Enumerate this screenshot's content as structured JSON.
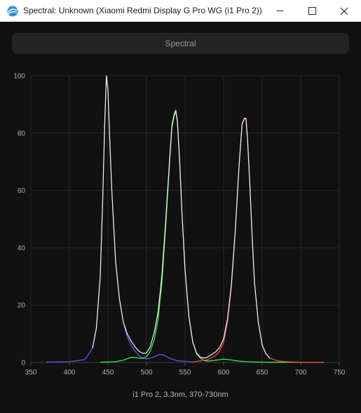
{
  "window": {
    "title": "Spectral: Unknown (Xiaomi Redmi Display G Pro WG (i1 Pro 2))",
    "icons": {
      "app": "spectral-app-icon",
      "minimize": "minimize-icon",
      "maximize": "maximize-icon",
      "close": "close-icon"
    }
  },
  "toolbar": {
    "mode_label": "Spectral"
  },
  "caption": "i1 Pro 2, 3.3nm, 370-730nm",
  "colors": {
    "blue": "#7a4dff",
    "green": "#3cff3c",
    "red": "#ff4a4a",
    "envelope": "#f2f2f2"
  },
  "chart_data": {
    "type": "line",
    "title": "",
    "xlabel": "",
    "ylabel": "",
    "xlim": [
      350,
      750
    ],
    "ylim": [
      0,
      100
    ],
    "xticks": [
      350,
      400,
      450,
      500,
      550,
      600,
      650,
      700,
      750
    ],
    "yticks": [
      0,
      20,
      40,
      60,
      80,
      100
    ],
    "grid": true,
    "legend": "none",
    "series": [
      {
        "color": "#7a4dff",
        "x": [
          370,
          400,
          420,
          430,
          435,
          440,
          443,
          446,
          448,
          450,
          452,
          455,
          460,
          465,
          470,
          475,
          480,
          485,
          490,
          495,
          500,
          505,
          510,
          515,
          520,
          525,
          530,
          540,
          560
        ],
        "y": [
          0.2,
          0.3,
          1,
          5,
          12,
          30,
          55,
          85,
          100,
          95,
          80,
          60,
          35,
          22,
          14,
          9,
          6,
          4,
          2.5,
          1.5,
          1.2,
          1.5,
          2,
          2.6,
          2.8,
          2.2,
          1.5,
          0.6,
          0.2
        ]
      },
      {
        "color": "#3cff3c",
        "x": [
          440,
          460,
          470,
          480,
          485,
          490,
          495,
          500,
          505,
          510,
          515,
          520,
          525,
          530,
          533,
          536,
          538,
          540,
          543,
          546,
          550,
          555,
          560,
          565,
          570,
          575,
          580,
          590,
          600,
          610,
          620,
          630,
          640,
          660,
          700,
          730
        ],
        "y": [
          0.1,
          0.3,
          0.8,
          1.8,
          1.8,
          1.5,
          1.5,
          2,
          4,
          8,
          15,
          28,
          48,
          70,
          82,
          86,
          87.5,
          84,
          70,
          52,
          32,
          16,
          7,
          3,
          1.5,
          0.7,
          0.5,
          0.8,
          1.2,
          0.9,
          0.5,
          0.3,
          0.2,
          0.1,
          0.1,
          0.1
        ]
      },
      {
        "color": "#ff4a4a",
        "x": [
          560,
          580,
          590,
          595,
          600,
          605,
          610,
          615,
          620,
          624,
          627,
          629,
          631,
          634,
          637,
          640,
          645,
          650,
          655,
          660,
          670,
          680,
          700,
          730
        ],
        "y": [
          0.2,
          1,
          2.5,
          4,
          7,
          14,
          26,
          45,
          68,
          83,
          85,
          85,
          78,
          62,
          44,
          28,
          14,
          6,
          3,
          1.5,
          0.6,
          0.3,
          0.1,
          0.1
        ]
      },
      {
        "color": "#f2f2f2",
        "x": [
          430,
          435,
          440,
          443,
          446,
          448,
          450,
          452,
          455,
          460,
          465,
          470,
          475,
          480,
          485,
          490,
          495,
          500,
          505,
          510,
          515,
          520,
          525,
          530,
          533,
          536,
          538,
          540,
          543,
          546,
          550,
          555,
          560,
          565,
          570,
          575,
          580,
          585,
          590,
          595,
          600,
          605,
          610,
          615,
          620,
          624,
          627,
          629,
          631,
          634,
          637,
          640,
          645,
          650,
          655,
          660
        ],
        "y": [
          5,
          12,
          30,
          55,
          85,
          100,
          95,
          80,
          60,
          35,
          22,
          14,
          10,
          7.5,
          5.5,
          4,
          3.2,
          3.3,
          5.6,
          10.5,
          17.5,
          30.5,
          49.8,
          71,
          82.8,
          86.6,
          88,
          84.4,
          70.2,
          52.2,
          32.2,
          16.1,
          7.2,
          3.2,
          1.8,
          1.6,
          2,
          2.9,
          3.8,
          5.3,
          8.3,
          15.1,
          27,
          45.6,
          68.5,
          83.3,
          85.2,
          85.1,
          78.1,
          62.1,
          44.1,
          28.1,
          14.1,
          6.1,
          3,
          1.5
        ]
      }
    ]
  }
}
